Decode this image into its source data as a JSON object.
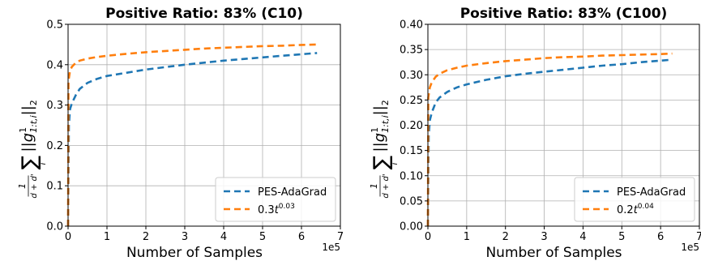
{
  "chart_data": [
    {
      "type": "line",
      "title": "Positive Ratio: 83% (C10)",
      "xlabel": "Number of Samples",
      "x_scale_label": "1e5",
      "ylabel": "1/(d+d') Σ_i ||g^1_{1:t,i}||_2",
      "xlim": [
        0,
        7
      ],
      "ylim": [
        0,
        0.5
      ],
      "xticks": [
        "0",
        "1",
        "2",
        "3",
        "4",
        "5",
        "6",
        "7"
      ],
      "yticks": [
        "0.0",
        "0.1",
        "0.2",
        "0.3",
        "0.4",
        "0.5"
      ],
      "grid": true,
      "legend_position": "bottom-right",
      "series": [
        {
          "name": "PES-AdaGrad",
          "color": "#1f77b4",
          "style": "dashed",
          "x": [
            0,
            0.02,
            0.05,
            0.1,
            0.2,
            0.3,
            0.5,
            0.75,
            1,
            1.5,
            2,
            2.5,
            3,
            3.5,
            4,
            4.5,
            5,
            5.5,
            6,
            6.4
          ],
          "y": [
            0.0,
            0.25,
            0.29,
            0.305,
            0.325,
            0.34,
            0.355,
            0.365,
            0.372,
            0.38,
            0.388,
            0.394,
            0.4,
            0.405,
            0.41,
            0.414,
            0.418,
            0.422,
            0.426,
            0.429
          ]
        },
        {
          "name": "0.3t^{0.03}",
          "name_base": "0.3t",
          "name_exp": "0.03",
          "color": "#ff7f0e",
          "style": "dashed",
          "x": [
            0,
            0.01,
            0.05,
            0.1,
            0.2,
            0.3,
            0.5,
            0.75,
            1,
            1.5,
            2,
            2.5,
            3,
            3.5,
            4,
            4.5,
            5,
            5.5,
            6,
            6.4
          ],
          "y": [
            0.0,
            0.36,
            0.385,
            0.395,
            0.405,
            0.41,
            0.415,
            0.419,
            0.422,
            0.427,
            0.431,
            0.434,
            0.437,
            0.44,
            0.442,
            0.444,
            0.446,
            0.447,
            0.449,
            0.45
          ]
        }
      ]
    },
    {
      "type": "line",
      "title": "Positive Ratio: 83% (C100)",
      "xlabel": "Number of Samples",
      "x_scale_label": "1e5",
      "ylabel": "1/(d+d') Σ_i ||g^1_{1:t,i}||_2",
      "xlim": [
        0,
        7
      ],
      "ylim": [
        0,
        0.4
      ],
      "xticks": [
        "0",
        "1",
        "2",
        "3",
        "4",
        "5",
        "6",
        "7"
      ],
      "yticks": [
        "0.00",
        "0.05",
        "0.10",
        "0.15",
        "0.20",
        "0.25",
        "0.30",
        "0.35",
        "0.40"
      ],
      "grid": true,
      "legend_position": "bottom-right",
      "series": [
        {
          "name": "PES-AdaGrad",
          "color": "#1f77b4",
          "style": "dashed",
          "x": [
            0,
            0.02,
            0.05,
            0.1,
            0.2,
            0.3,
            0.5,
            0.75,
            1,
            1.5,
            2,
            2.5,
            3,
            3.5,
            4,
            4.5,
            5,
            5.5,
            6,
            6.3
          ],
          "y": [
            0.0,
            0.18,
            0.21,
            0.225,
            0.245,
            0.255,
            0.266,
            0.275,
            0.281,
            0.29,
            0.297,
            0.302,
            0.306,
            0.31,
            0.314,
            0.318,
            0.321,
            0.325,
            0.328,
            0.33
          ]
        },
        {
          "name": "0.2t^{0.04}",
          "name_base": "0.2t",
          "name_exp": "0.04",
          "color": "#ff7f0e",
          "style": "dashed",
          "x": [
            0,
            0.01,
            0.05,
            0.1,
            0.2,
            0.3,
            0.5,
            0.75,
            1,
            1.5,
            2,
            2.5,
            3,
            3.5,
            4,
            4.5,
            5,
            5.5,
            6,
            6.3
          ],
          "y": [
            0.0,
            0.255,
            0.275,
            0.285,
            0.296,
            0.302,
            0.309,
            0.314,
            0.318,
            0.323,
            0.327,
            0.33,
            0.333,
            0.335,
            0.336,
            0.338,
            0.339,
            0.34,
            0.341,
            0.342
          ]
        }
      ]
    }
  ]
}
